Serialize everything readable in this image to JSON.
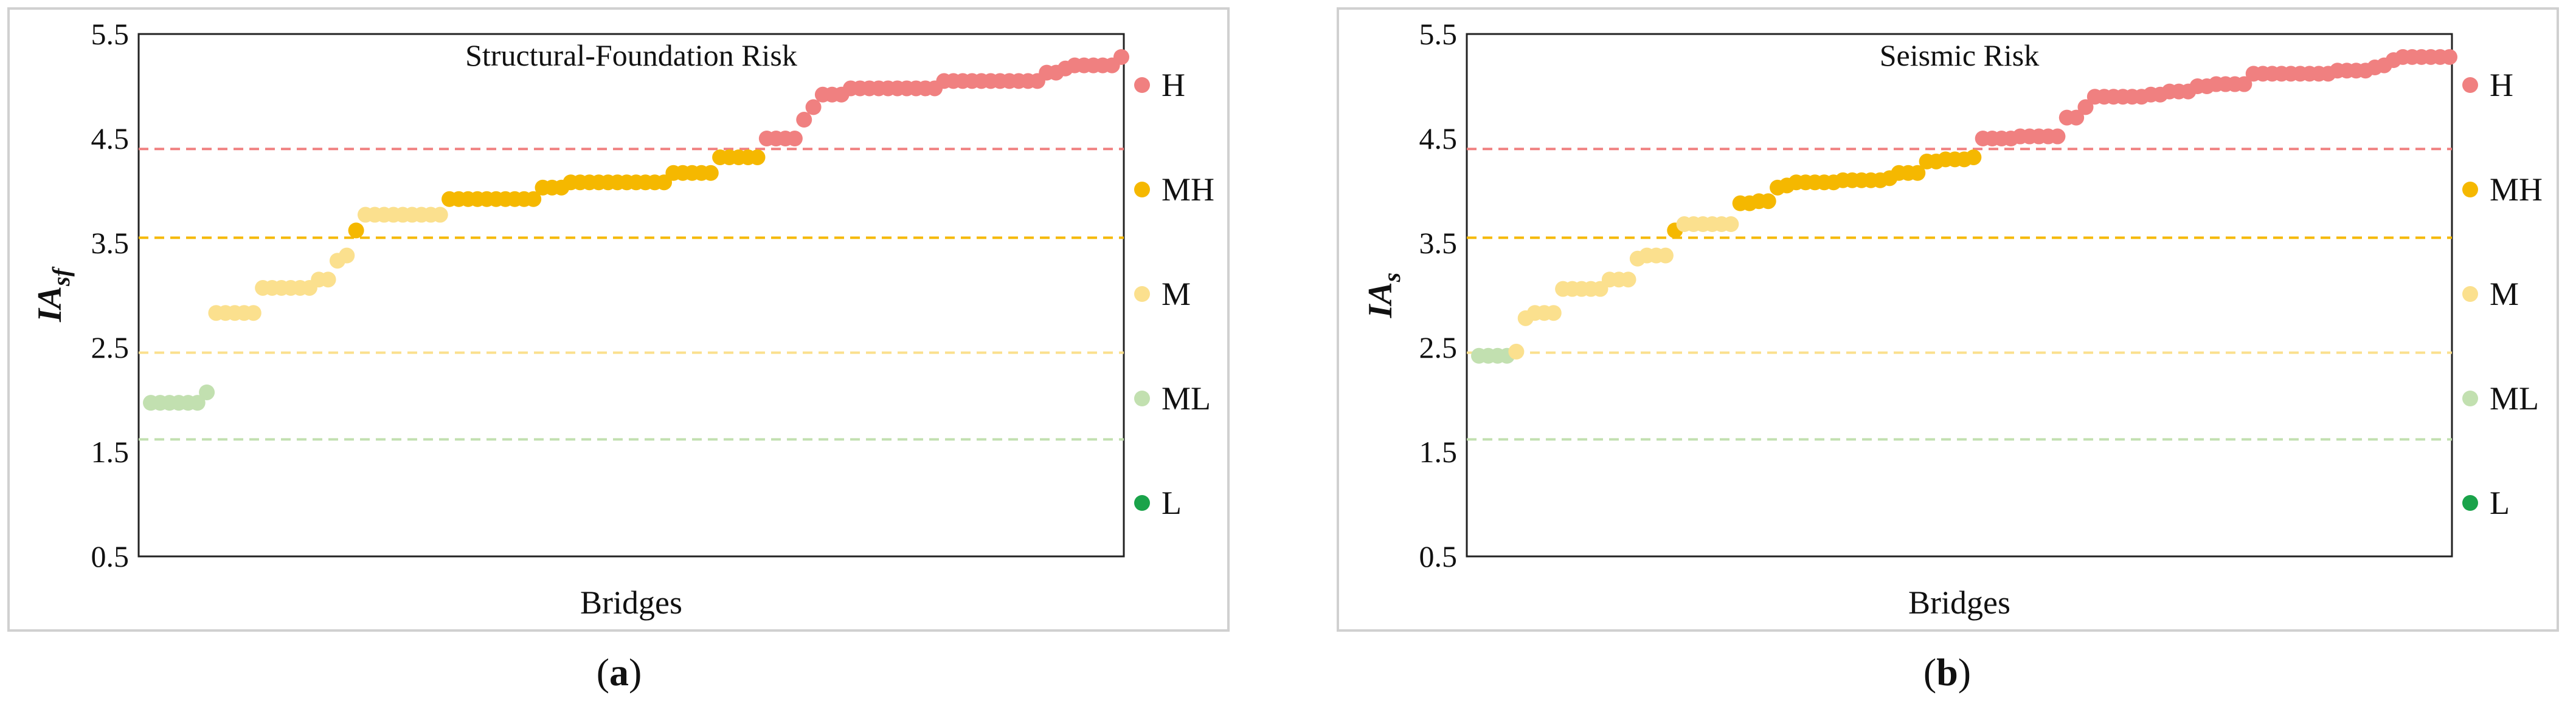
{
  "colors": {
    "H": "#f08080",
    "MH": "#f5b800",
    "M": "#fbe08e",
    "ML": "#c2e0b0",
    "L": "#1aa34a"
  },
  "thresholds": [
    {
      "value": 4.4,
      "color": "#f08080"
    },
    {
      "value": 3.55,
      "color": "#f5b800"
    },
    {
      "value": 2.45,
      "color": "#fbe08e"
    },
    {
      "value": 1.62,
      "color": "#c2e0b0"
    }
  ],
  "legend": [
    "H",
    "MH",
    "M",
    "ML",
    "L"
  ],
  "chart_data": [
    {
      "type": "scatter",
      "title": "Structural-Foundation Risk",
      "xlabel": "Bridges",
      "ylabel_main": "IA",
      "ylabel_sub": "sf",
      "caption_letter": "a",
      "ylim": [
        0.5,
        5.5
      ],
      "yticks": [
        "0.5",
        "1.5",
        "2.5",
        "3.5",
        "4.5",
        "5.5"
      ],
      "grid": false,
      "legend_position": "right",
      "groups": [
        {
          "class": "ML",
          "values": [
            1.97,
            1.97,
            1.97,
            1.97,
            1.97,
            1.97,
            2.07
          ]
        },
        {
          "class": "M",
          "values": [
            2.83,
            2.83,
            2.83,
            2.83,
            2.83,
            3.07,
            3.07,
            3.07,
            3.07,
            3.07,
            3.07,
            3.15,
            3.15,
            3.33,
            3.38,
            3.77,
            3.77,
            3.77,
            3.77,
            3.77,
            3.77,
            3.77,
            3.77,
            3.77
          ]
        },
        {
          "class": "MH",
          "values": [
            3.62,
            3.92,
            3.92,
            3.92,
            3.92,
            3.92,
            3.92,
            3.92,
            3.92,
            3.92,
            3.92,
            4.03,
            4.03,
            4.03,
            4.08,
            4.08,
            4.08,
            4.08,
            4.08,
            4.08,
            4.08,
            4.08,
            4.08,
            4.08,
            4.08,
            4.17,
            4.17,
            4.17,
            4.17,
            4.17,
            4.32,
            4.32,
            4.32,
            4.32,
            4.32
          ]
        },
        {
          "class": "H",
          "values": [
            4.5,
            4.5,
            4.5,
            4.5,
            4.68,
            4.8,
            4.92,
            4.92,
            4.92,
            4.98,
            4.98,
            4.98,
            4.98,
            4.98,
            4.98,
            4.98,
            4.98,
            4.98,
            4.98,
            5.05,
            5.05,
            5.05,
            5.05,
            5.05,
            5.05,
            5.05,
            5.05,
            5.05,
            5.05,
            5.05,
            5.13,
            5.13,
            5.17,
            5.2,
            5.2,
            5.2,
            5.2,
            5.2,
            5.28
          ]
        }
      ]
    },
    {
      "type": "scatter",
      "title": "Seismic Risk",
      "xlabel": "Bridges",
      "ylabel_main": "IA",
      "ylabel_sub": "s",
      "caption_letter": "b",
      "ylim": [
        0.5,
        5.5
      ],
      "yticks": [
        "0.5",
        "1.5",
        "2.5",
        "3.5",
        "4.5",
        "5.5"
      ],
      "grid": false,
      "legend_position": "right",
      "groups": [
        {
          "class": "ML",
          "values": [
            2.42,
            2.42,
            2.42,
            2.42
          ]
        },
        {
          "class": "M",
          "values": [
            2.46,
            2.78,
            2.83,
            2.83,
            2.83,
            3.06,
            3.06,
            3.06,
            3.06,
            3.06,
            3.15,
            3.15,
            3.15,
            3.35,
            3.38,
            3.38,
            3.38,
            3.68,
            3.68,
            3.68,
            3.68,
            3.68,
            3.68
          ]
        },
        {
          "class": "MH",
          "values": [
            3.62,
            3.88,
            3.88,
            3.9,
            3.9,
            4.03,
            4.05,
            4.08,
            4.08,
            4.08,
            4.08,
            4.08,
            4.1,
            4.1,
            4.1,
            4.1,
            4.1,
            4.12,
            4.17,
            4.17,
            4.17,
            4.28,
            4.28,
            4.3,
            4.3,
            4.3,
            4.32
          ]
        },
        {
          "class": "H",
          "values": [
            4.5,
            4.5,
            4.5,
            4.5,
            4.52,
            4.52,
            4.52,
            4.52,
            4.52,
            4.7,
            4.7,
            4.8,
            4.9,
            4.9,
            4.9,
            4.9,
            4.9,
            4.9,
            4.92,
            4.92,
            4.95,
            4.95,
            4.95,
            5.0,
            5.0,
            5.02,
            5.02,
            5.02,
            5.02,
            5.12,
            5.12,
            5.12,
            5.12,
            5.12,
            5.12,
            5.12,
            5.12,
            5.12,
            5.15,
            5.15,
            5.15,
            5.15,
            5.18,
            5.2,
            5.25,
            5.28,
            5.28,
            5.28,
            5.28,
            5.28,
            5.28
          ]
        }
      ]
    }
  ]
}
